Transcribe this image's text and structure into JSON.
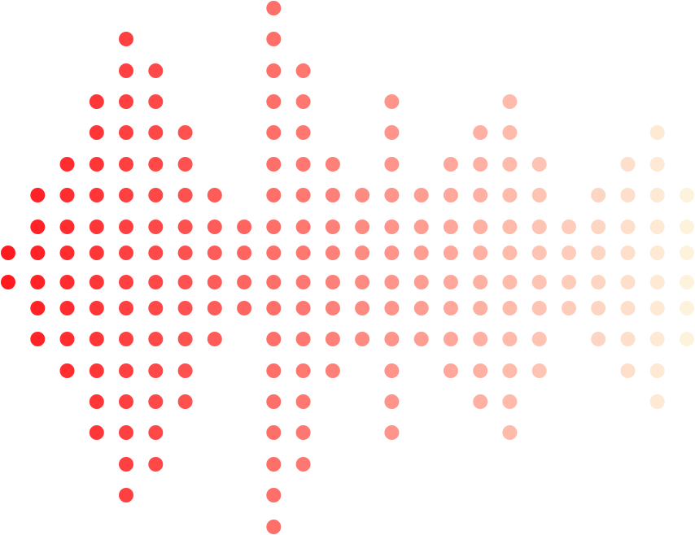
{
  "graphic": {
    "type": "dot-matrix sound wave",
    "colors": {
      "start": "#ff1a1f",
      "end": "#fdf2dc"
    },
    "columns": [
      [
        8,
        9
      ],
      [
        6,
        11
      ],
      [
        5,
        12
      ],
      [
        3,
        14
      ],
      [
        1,
        16
      ],
      [
        2,
        15
      ],
      [
        4,
        13
      ],
      [
        6,
        11
      ],
      [
        7,
        10
      ],
      [
        0,
        17
      ],
      [
        2,
        15
      ],
      [
        5,
        12
      ],
      [
        6,
        11
      ],
      [
        3,
        14
      ],
      [
        6,
        11
      ],
      [
        5,
        12
      ],
      [
        4,
        13
      ],
      [
        3,
        14
      ],
      [
        5,
        12
      ],
      [
        7,
        10
      ],
      [
        6,
        11
      ],
      [
        5,
        12
      ],
      [
        4,
        13
      ],
      [
        6,
        11
      ]
    ]
  }
}
